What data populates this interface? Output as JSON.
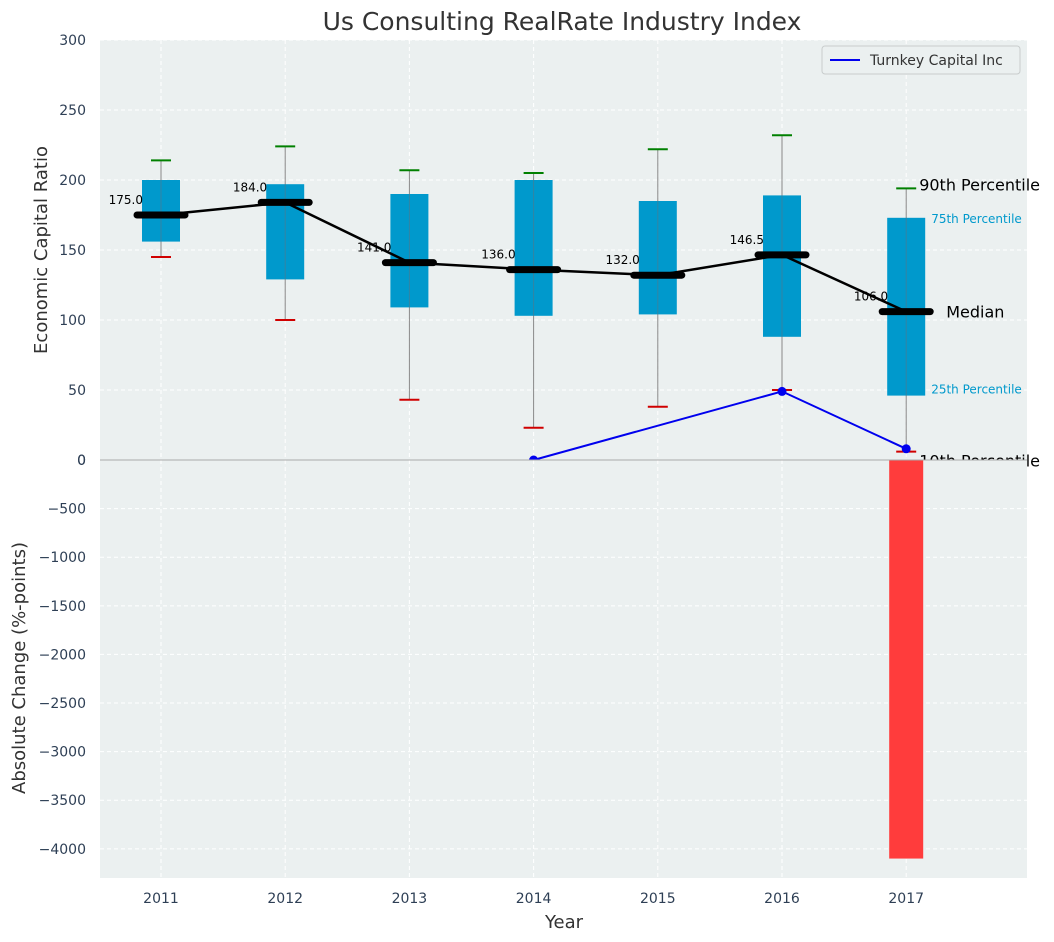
{
  "chart_data": {
    "type": "box",
    "title": "Us Consulting RealRate Industry Index",
    "xlabel": "Year",
    "categories": [
      "2011",
      "2012",
      "2013",
      "2014",
      "2015",
      "2016",
      "2017"
    ],
    "top_panel": {
      "ylabel": "Economic Capital Ratio",
      "ylim": [
        0,
        300
      ],
      "yticks": [
        0,
        50,
        100,
        150,
        200,
        250,
        300
      ],
      "boxes": [
        {
          "year": "2011",
          "p10": 145,
          "p25": 156,
          "median": 175,
          "p75": 200,
          "p90": 214,
          "median_label": "175.0"
        },
        {
          "year": "2012",
          "p10": 100,
          "p25": 129,
          "median": 184,
          "p75": 197,
          "p90": 224,
          "median_label": "184.0"
        },
        {
          "year": "2013",
          "p10": 43,
          "p25": 109,
          "median": 141,
          "p75": 190,
          "p90": 207,
          "median_label": "141.0"
        },
        {
          "year": "2014",
          "p10": 23,
          "p25": 103,
          "median": 136,
          "p75": 200,
          "p90": 205,
          "median_label": "136.0"
        },
        {
          "year": "2015",
          "p10": 38,
          "p25": 104,
          "median": 132,
          "p75": 185,
          "p90": 222,
          "median_label": "132.0"
        },
        {
          "year": "2016",
          "p10": 50,
          "p25": 88,
          "median": 146.5,
          "p75": 189,
          "p90": 232,
          "median_label": "146.5"
        },
        {
          "year": "2017",
          "p10": 6,
          "p25": 46,
          "median": 106,
          "p75": 173,
          "p90": 194,
          "median_label": "106.0"
        }
      ],
      "company_series": {
        "name": "Turnkey Capital Inc",
        "points": [
          {
            "year": "2014",
            "value": 0
          },
          {
            "year": "2016",
            "value": 49
          },
          {
            "year": "2017",
            "value": 8
          }
        ]
      },
      "annotations": {
        "p90": "90th Percentile",
        "p75": "75th Percentile",
        "median": "Median",
        "p25": "25th Percentile",
        "p10": "10th Percentile"
      },
      "legend": {
        "position": "top-right",
        "entries": [
          "Turnkey Capital Inc"
        ]
      }
    },
    "bottom_panel": {
      "ylabel": "Absolute Change (%-points)",
      "ylim": [
        -4300,
        0
      ],
      "yticks": [
        0,
        -500,
        -1000,
        -1500,
        -2000,
        -2500,
        -3000,
        -3500,
        -4000
      ],
      "ytick_labels": [
        "0",
        "−500",
        "−1000",
        "−1500",
        "−2000",
        "−2500",
        "−3000",
        "−3500",
        "−4000"
      ],
      "bars": [
        {
          "year": "2017",
          "value": -4100
        }
      ]
    },
    "grid": true,
    "colors": {
      "background": "#ebf0f0",
      "box": "#0099cc",
      "median": "#000000",
      "whisker_top": "#008000",
      "whisker_bottom": "#d00000",
      "company_line": "#0000ee",
      "bar": "#ff3c3c"
    }
  }
}
